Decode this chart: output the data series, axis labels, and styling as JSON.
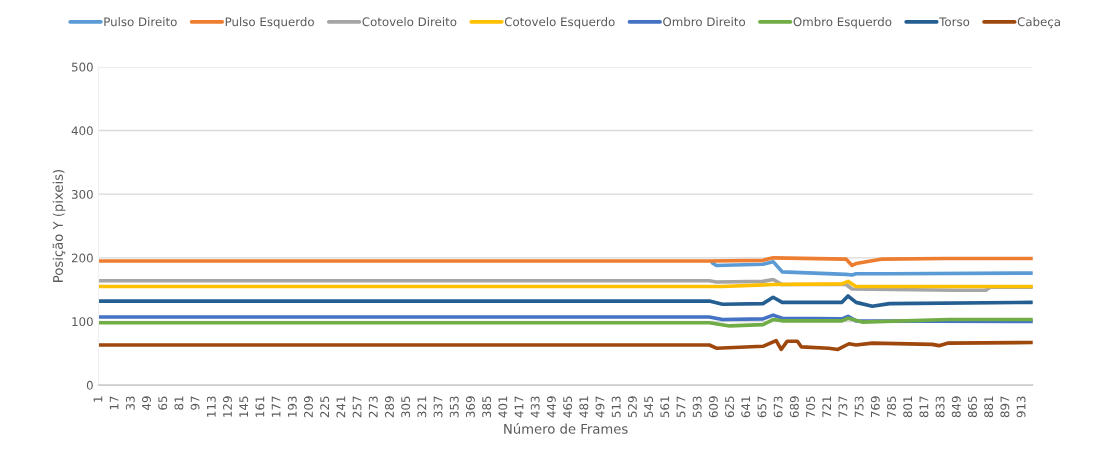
{
  "chart_data": {
    "type": "line",
    "xlabel": "Número de Frames",
    "ylabel": "Posição Y (pixeis)",
    "xlim": [
      0.5,
      923.5
    ],
    "ylim": [
      0,
      500
    ],
    "yticks": [
      0,
      100,
      200,
      300,
      400,
      500
    ],
    "xticks": [
      1,
      17,
      33,
      49,
      65,
      81,
      97,
      113,
      129,
      145,
      161,
      177,
      193,
      209,
      225,
      241,
      257,
      273,
      289,
      305,
      321,
      337,
      353,
      369,
      385,
      401,
      417,
      433,
      449,
      465,
      481,
      497,
      513,
      529,
      545,
      561,
      577,
      593,
      609,
      625,
      641,
      657,
      673,
      689,
      705,
      721,
      737,
      753,
      769,
      785,
      801,
      817,
      833,
      849,
      865,
      881,
      897,
      913
    ],
    "grid": "y",
    "legend": "top",
    "marker": "none",
    "line_style": "solid",
    "series": [
      {
        "name": "Pulso Direito",
        "color": "#5b9bd5",
        "x": [
          607,
          611,
          657,
          667,
          676,
          739,
          745,
          749,
          782,
          923
        ],
        "values": [
          192,
          188,
          190,
          194,
          178,
          174,
          173,
          175,
          175,
          176
        ]
      },
      {
        "name": "Pulso Esquerdo",
        "color": "#ed7d31",
        "x": [
          1,
          604,
          657,
          667,
          739,
          745,
          749,
          775,
          837,
          923
        ],
        "values": [
          195,
          195,
          196,
          200,
          198,
          188,
          191,
          198,
          199,
          199
        ]
      },
      {
        "name": "Cotovelo Direito",
        "color": "#a5a5a5",
        "x": [
          1,
          604,
          611,
          657,
          667,
          676,
          739,
          745,
          847,
          877,
          882,
          923
        ],
        "values": [
          164,
          164,
          162,
          163,
          166,
          158,
          158,
          151,
          149,
          149,
          154,
          154
        ]
      },
      {
        "name": "Cotovelo Esquerdo",
        "color": "#ffc000",
        "x": [
          1,
          617,
          667,
          735,
          741,
          749,
          923
        ],
        "values": [
          155,
          155,
          158,
          159,
          163,
          155,
          155
        ]
      },
      {
        "name": "Ombro Direito",
        "color": "#4472c4",
        "x": [
          1,
          604,
          617,
          657,
          667,
          676,
          735,
          741,
          749,
          923
        ],
        "values": [
          107,
          107,
          103,
          104,
          110,
          105,
          104,
          108,
          101,
          100
        ]
      },
      {
        "name": "Ombro Esquerdo",
        "color": "#70ad47",
        "x": [
          1,
          604,
          624,
          657,
          667,
          676,
          735,
          741,
          755,
          840,
          923
        ],
        "values": [
          98,
          98,
          93,
          95,
          103,
          101,
          101,
          105,
          99,
          103,
          103
        ]
      },
      {
        "name": "Torso",
        "color": "#255e91",
        "x": [
          1,
          604,
          617,
          657,
          667,
          676,
          735,
          741,
          749,
          765,
          782,
          923
        ],
        "values": [
          132,
          132,
          127,
          128,
          138,
          130,
          130,
          140,
          130,
          124,
          128,
          130
        ]
      },
      {
        "name": "Cabeça",
        "color": "#9e480e",
        "x": [
          1,
          604,
          611,
          657,
          670,
          675,
          681,
          691,
          695,
          722,
          731,
          742,
          749,
          765,
          824,
          831,
          840,
          923
        ],
        "values": [
          63,
          63,
          58,
          61,
          70,
          56,
          69,
          69,
          60,
          58,
          56,
          65,
          63,
          66,
          64,
          62,
          66,
          67
        ]
      }
    ]
  }
}
